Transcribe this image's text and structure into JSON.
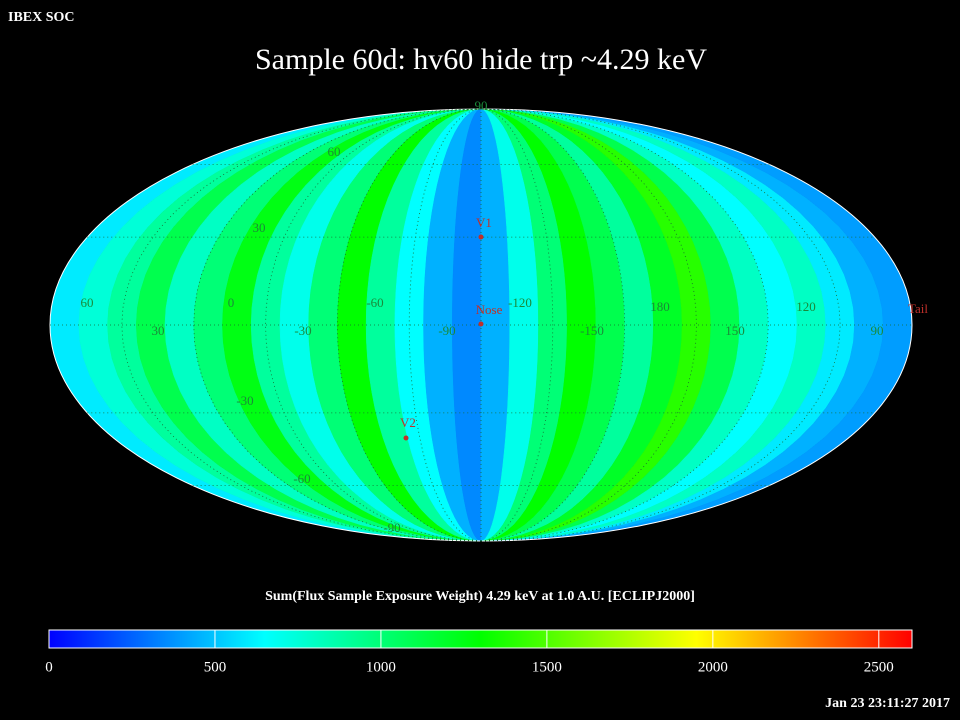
{
  "header": {
    "source": "IBEX SOC",
    "title": "Sample 60d: hv60 hide trp ~4.29 keV",
    "timestamp": "Jan 23 23:11:27 2017"
  },
  "map": {
    "projection": "mollweide",
    "strip_values": [
      600,
      750,
      900,
      1100,
      800,
      1000,
      1250,
      900,
      700,
      1000,
      1300,
      900,
      650,
      450,
      350,
      450,
      700,
      1000,
      1300,
      1100,
      900,
      1200,
      1400,
      1100,
      800,
      650,
      800,
      600,
      450,
      400
    ],
    "longitude_labels": [
      "60",
      "30",
      "0",
      "-30",
      "-60",
      "-90",
      "-120",
      "-150",
      "180",
      "150",
      "120",
      "90"
    ],
    "latitude_labels": [
      "90",
      "60",
      "30",
      "-30",
      "-60",
      "-90"
    ],
    "markers": [
      "V1",
      "Nose",
      "V2",
      "Tail"
    ]
  },
  "colorbar": {
    "label": "Sum(Flux Sample Exposure Weight)  4.29 keV at 1.0 A.U. [ECLIPJ2000]",
    "clim": [
      0,
      2600
    ],
    "ticks": [
      0,
      500,
      1000,
      1500,
      2000,
      2500
    ],
    "colors": [
      "#0000ff",
      "#00ffff",
      "#00ff00",
      "#ffff00",
      "#ff0000"
    ]
  }
}
